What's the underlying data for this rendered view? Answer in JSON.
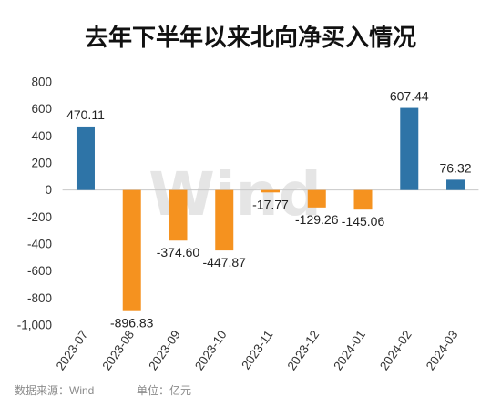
{
  "watermark": "Wind",
  "footer": {
    "source": "数据来源：Wind",
    "unit": "单位：亿元"
  },
  "colors": {
    "positive": "#2e74a7",
    "negative": "#f5921f",
    "baseline": "#c8c8c8"
  },
  "chart_data": {
    "type": "bar",
    "title": "去年下半年以来北向净买入情况",
    "categories": [
      "2023-07",
      "2023-08",
      "2023-09",
      "2023-10",
      "2023-11",
      "2023-12",
      "2024-01",
      "2024-02",
      "2024-03"
    ],
    "values": [
      470.11,
      -896.83,
      -374.6,
      -447.87,
      -17.77,
      -129.26,
      -145.06,
      607.44,
      76.32
    ],
    "value_labels": [
      "470.11",
      "-896.83",
      "-374.60",
      "-447.87",
      "-17.77",
      "-129.26",
      "-145.06",
      "607.44",
      "76.32"
    ],
    "yticks": [
      800,
      600,
      400,
      200,
      0,
      -200,
      -400,
      -600,
      -800,
      -1000
    ],
    "ytick_labels": [
      "800",
      "600",
      "400",
      "200",
      "0",
      "-200",
      "-400",
      "-600",
      "-800",
      "-1,000"
    ],
    "ylim": [
      -1000,
      800
    ],
    "grid": false
  }
}
